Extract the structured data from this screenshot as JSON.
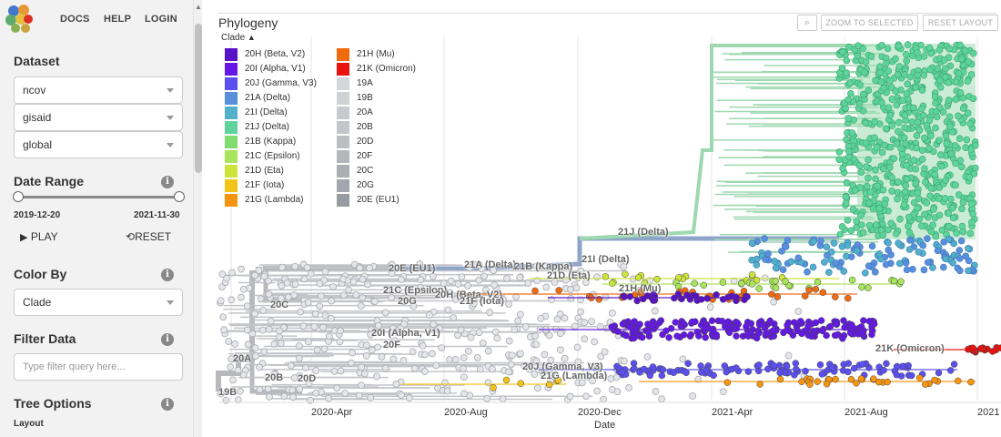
{
  "nav": {
    "docs": "DOCS",
    "help": "HELP",
    "login": "LOGIN"
  },
  "sidebar": {
    "dataset_title": "Dataset",
    "dataset_selects": [
      "ncov",
      "gisaid",
      "global"
    ],
    "date_range_title": "Date Range",
    "date_start": "2019-12-20",
    "date_end": "2021-11-30",
    "date_range_selected": [
      0,
      1
    ],
    "play_label": "PLAY",
    "reset_label": "RESET",
    "color_by_title": "Color By",
    "color_by_value": "Clade",
    "filter_title": "Filter Data",
    "filter_placeholder": "Type filter query here...",
    "tree_options_title": "Tree Options",
    "layout_label": "Layout"
  },
  "panel": {
    "title": "Phylogeny",
    "legend_toggle": "Clade",
    "zoom_to_selected": "ZOOM TO SELECTED",
    "reset_layout": "RESET LAYOUT"
  },
  "legend": [
    {
      "label": "20H (Beta, V2)",
      "color": "#5a12c8"
    },
    {
      "label": "20I (Alpha, V1)",
      "color": "#6418e6"
    },
    {
      "label": "20J (Gamma, V3)",
      "color": "#5b4ff0"
    },
    {
      "label": "21A (Delta)",
      "color": "#5a8fdc"
    },
    {
      "label": "21I (Delta)",
      "color": "#52b1c8"
    },
    {
      "label": "21J (Delta)",
      "color": "#5ed39b"
    },
    {
      "label": "21B (Kappa)",
      "color": "#80dc70"
    },
    {
      "label": "21C (Epsilon)",
      "color": "#a8e45c"
    },
    {
      "label": "21D (Eta)",
      "color": "#cde43c"
    },
    {
      "label": "21F (Iota)",
      "color": "#f2c318"
    },
    {
      "label": "21G (Lambda)",
      "color": "#f79510"
    },
    {
      "label": "21H (Mu)",
      "color": "#f06a10"
    },
    {
      "label": "21K (Omicron)",
      "color": "#e8120e"
    },
    {
      "label": "19A",
      "color": "#d3d6da"
    },
    {
      "label": "19B",
      "color": "#cfd1d5"
    },
    {
      "label": "20A",
      "color": "#c8cacf"
    },
    {
      "label": "20B",
      "color": "#c3c5ca"
    },
    {
      "label": "20D",
      "color": "#bcbec3"
    },
    {
      "label": "20F",
      "color": "#b4b6bb"
    },
    {
      "label": "20C",
      "color": "#acaeb4"
    },
    {
      "label": "20G",
      "color": "#a4a6ad"
    },
    {
      "label": "20E (EU1)",
      "color": "#999ba3"
    }
  ],
  "tree_labels": [
    {
      "text": "21J (Delta)"
    },
    {
      "text": "21I (Delta)"
    },
    {
      "text": "21A (Delta)"
    },
    {
      "text": "21B (Kappa)"
    },
    {
      "text": "20E (EU1)"
    },
    {
      "text": "21D (Eta)"
    },
    {
      "text": "21H (Mu)"
    },
    {
      "text": "21C (Epsilon)"
    },
    {
      "text": "20H (Beta, V2)"
    },
    {
      "text": "20G"
    },
    {
      "text": "21F (Iota)"
    },
    {
      "text": "20C"
    },
    {
      "text": "20I (Alpha, V1)"
    },
    {
      "text": "20F"
    },
    {
      "text": "21K (Omicron)"
    },
    {
      "text": "20A"
    },
    {
      "text": "20J (Gamma, V3)"
    },
    {
      "text": "21G (Lambda)"
    },
    {
      "text": "20B"
    },
    {
      "text": "20D"
    },
    {
      "text": "19B"
    }
  ],
  "axis": {
    "title": "Date",
    "ticks": [
      "2020-Apr",
      "2020-Aug",
      "2020-Dec",
      "2021-Apr",
      "2021-Aug",
      "2021"
    ]
  }
}
